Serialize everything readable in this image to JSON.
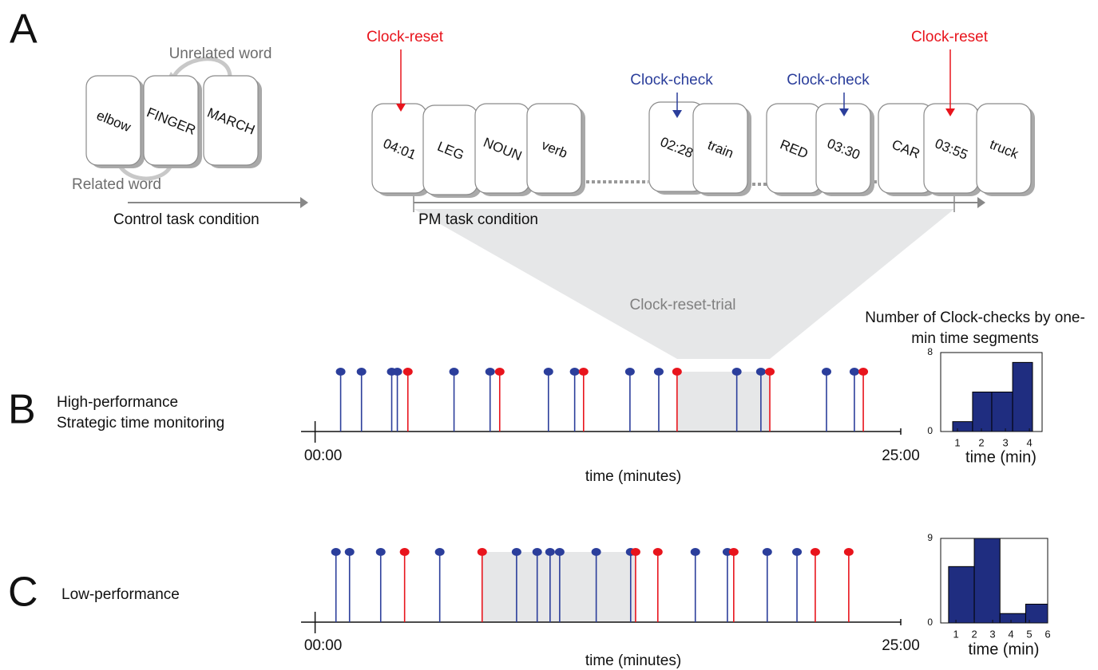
{
  "panel_a": {
    "label": "A",
    "control": {
      "cards": [
        "elbow",
        "FINGER",
        "MARCH"
      ],
      "unrelated": "Unrelated word",
      "related": "Related word",
      "condition": "Control task condition"
    },
    "pm": {
      "cards": [
        "04:01",
        "LEG",
        "NOUN",
        "verb",
        "02:28",
        "train",
        "RED",
        "03:30",
        "CAR",
        "03:55",
        "truck"
      ],
      "clock_reset": [
        "Clock-reset",
        "Clock-reset"
      ],
      "clock_check": [
        "Clock-check",
        "Clock-check"
      ],
      "condition": "PM task condition",
      "trial": "Clock-reset-trial"
    }
  },
  "panel_b": {
    "label": "B",
    "lines": [
      "High-performance",
      "Strategic time monitoring"
    ]
  },
  "panel_c": {
    "label": "C",
    "text": "Low-performance"
  },
  "chart_data": [
    {
      "type": "stem",
      "xlabel": "time (minutes)",
      "xlim": [
        -0.6,
        25
      ],
      "xticks": [
        {
          "value": 0,
          "label": "00:00"
        },
        {
          "value": 25,
          "label": "25:00"
        }
      ],
      "series": [
        {
          "color": "#2b3e9b",
          "values": [
            1.09,
            1.98,
            3.27,
            3.51,
            5.93,
            7.47,
            9.96,
            11.08,
            13.44,
            14.67,
            18.0,
            19.03,
            21.83,
            23.02
          ]
        },
        {
          "color": "#e8141c",
          "values": [
            3.96,
            7.88,
            11.46,
            15.45,
            19.41,
            23.4
          ]
        }
      ]
    },
    {
      "type": "histogram",
      "title": "Number of Clock-checks by one-min time segments",
      "xlabel": "time (min)",
      "bins": [
        0.8,
        1.63,
        2.43,
        3.3,
        4.13
      ],
      "values": [
        1,
        4,
        4,
        7
      ],
      "color": "#1f2d80",
      "xlim": [
        0.3,
        4.53
      ],
      "xticks": [
        1,
        2,
        3,
        4
      ],
      "ylim": [
        0,
        8
      ],
      "yticks": [
        0,
        8
      ]
    },
    {
      "type": "stem",
      "xlabel": "time (minutes)",
      "xlim": [
        -0.6,
        25
      ],
      "xticks": [
        {
          "value": 0,
          "label": "00:00"
        },
        {
          "value": 25,
          "label": "25:00"
        }
      ],
      "series": [
        {
          "color": "#2b3e9b",
          "values": [
            0.89,
            1.47,
            2.8,
            5.32,
            8.6,
            9.48,
            10.03,
            10.44,
            12.0,
            13.47,
            16.23,
            17.6,
            19.3,
            20.57
          ]
        },
        {
          "color": "#e8141c",
          "values": [
            3.82,
            7.13,
            13.68,
            14.63,
            17.87,
            21.35,
            22.78
          ]
        }
      ]
    },
    {
      "type": "histogram",
      "xlabel": "time (min)",
      "bins": [
        0.6,
        2,
        3.4,
        4.8,
        6
      ],
      "values": [
        6,
        9,
        1,
        2
      ],
      "color": "#1f2d80",
      "xlim": [
        0.17,
        6
      ],
      "xticks": [
        1,
        2,
        3,
        4,
        5,
        6
      ],
      "ylim": [
        0,
        9
      ],
      "yticks": [
        0,
        9
      ]
    }
  ]
}
